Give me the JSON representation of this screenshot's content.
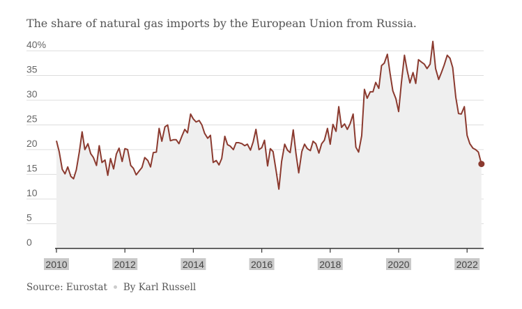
{
  "title": "The share of natural gas imports by the European Union from Russia.",
  "source": {
    "label": "Source: Eurostat",
    "byline": "By Karl Russell"
  },
  "colors": {
    "line": "#8b3a2f",
    "area": "#efefef",
    "grid": "#dddddd",
    "axis": "#333333",
    "tick_label_bg": "#c9c9c9"
  },
  "chart_data": {
    "type": "area",
    "title": "The share of natural gas imports by the European Union from Russia.",
    "xlabel": "",
    "ylabel": "",
    "ylim": [
      0,
      40
    ],
    "xlim": [
      2010.0,
      2022.42
    ],
    "yticks": [
      0,
      5,
      10,
      15,
      20,
      25,
      30,
      35,
      40
    ],
    "ytick_labels": [
      "0",
      "5",
      "10",
      "15",
      "20",
      "25",
      "30",
      "35",
      "40%"
    ],
    "xticks": [
      2010,
      2012,
      2014,
      2016,
      2018,
      2020,
      2022
    ],
    "xtick_labels": [
      "2010",
      "2012",
      "2014",
      "2016",
      "2018",
      "2020",
      "2022"
    ],
    "grid": true,
    "endpoint_marker": true,
    "series": [
      {
        "x": [
          2010.0,
          2010.08,
          2010.17,
          2010.25,
          2010.33,
          2010.42,
          2010.5,
          2010.58,
          2010.67,
          2010.75,
          2010.83,
          2010.92,
          2011.0,
          2011.08,
          2011.17,
          2011.25,
          2011.33,
          2011.42,
          2011.5,
          2011.58,
          2011.67,
          2011.75,
          2011.83,
          2011.92,
          2012.0,
          2012.08,
          2012.17,
          2012.25,
          2012.33,
          2012.42,
          2012.5,
          2012.58,
          2012.67,
          2012.75,
          2012.83,
          2012.92,
          2013.0,
          2013.08,
          2013.17,
          2013.25,
          2013.33,
          2013.42,
          2013.5,
          2013.58,
          2013.67,
          2013.75,
          2013.83,
          2013.92,
          2014.0,
          2014.08,
          2014.17,
          2014.25,
          2014.33,
          2014.42,
          2014.5,
          2014.58,
          2014.67,
          2014.75,
          2014.83,
          2014.92,
          2015.0,
          2015.08,
          2015.17,
          2015.25,
          2015.33,
          2015.42,
          2015.5,
          2015.58,
          2015.67,
          2015.75,
          2015.83,
          2015.92,
          2016.0,
          2016.08,
          2016.17,
          2016.25,
          2016.33,
          2016.42,
          2016.5,
          2016.58,
          2016.67,
          2016.75,
          2016.83,
          2016.92,
          2017.0,
          2017.08,
          2017.17,
          2017.25,
          2017.33,
          2017.42,
          2017.5,
          2017.58,
          2017.67,
          2017.75,
          2017.83,
          2017.92,
          2018.0,
          2018.08,
          2018.17,
          2018.25,
          2018.33,
          2018.42,
          2018.5,
          2018.58,
          2018.67,
          2018.75,
          2018.83,
          2018.92,
          2019.0,
          2019.08,
          2019.17,
          2019.25,
          2019.33,
          2019.42,
          2019.5,
          2019.58,
          2019.67,
          2019.75,
          2019.83,
          2019.92,
          2020.0,
          2020.08,
          2020.17,
          2020.25,
          2020.33,
          2020.42,
          2020.5,
          2020.58,
          2020.67,
          2020.75,
          2020.83,
          2020.92,
          2021.0,
          2021.08,
          2021.17,
          2021.25,
          2021.33,
          2021.42,
          2021.5,
          2021.58,
          2021.67,
          2021.75,
          2021.83,
          2021.92,
          2022.0,
          2022.08,
          2022.17,
          2022.25,
          2022.33,
          2022.42
        ],
        "values": [
          21.8,
          19.6,
          16.0,
          15.1,
          16.5,
          14.6,
          14.1,
          15.9,
          19.6,
          23.6,
          20.0,
          21.2,
          19.2,
          18.4,
          16.8,
          20.8,
          17.4,
          17.9,
          14.8,
          18.2,
          16.1,
          19.1,
          20.3,
          17.6,
          20.2,
          20.0,
          16.8,
          16.2,
          14.9,
          15.7,
          16.4,
          18.4,
          17.8,
          16.5,
          19.4,
          19.5,
          24.3,
          21.7,
          24.6,
          25.0,
          21.8,
          22.0,
          22.0,
          21.2,
          22.8,
          24.1,
          23.4,
          27.2,
          26.2,
          25.6,
          25.9,
          25.0,
          23.3,
          22.3,
          22.9,
          17.4,
          17.8,
          16.9,
          18.2,
          22.7,
          21.0,
          20.7,
          20.0,
          21.4,
          21.4,
          21.2,
          20.8,
          21.1,
          19.9,
          21.6,
          24.1,
          20.0,
          20.4,
          21.9,
          16.7,
          20.2,
          19.6,
          15.7,
          12.0,
          17.6,
          21.1,
          19.9,
          19.4,
          24.0,
          19.2,
          15.3,
          19.6,
          21.1,
          20.2,
          19.8,
          21.7,
          21.2,
          19.3,
          21.2,
          21.9,
          24.3,
          21.1,
          25.1,
          23.7,
          28.7,
          24.5,
          25.2,
          24.1,
          25.2,
          27.2,
          20.5,
          19.5,
          22.8,
          32.2,
          30.4,
          31.7,
          31.7,
          33.6,
          32.4,
          37.0,
          37.5,
          39.3,
          35.4,
          31.9,
          30.3,
          27.7,
          33.5,
          39.1,
          36.0,
          33.5,
          35.6,
          33.4,
          38.2,
          37.7,
          37.3,
          36.4,
          37.3,
          41.9,
          36.4,
          34.2,
          35.6,
          37.1,
          39.1,
          38.5,
          36.6,
          30.6,
          27.3,
          27.2,
          28.7,
          22.9,
          21.2,
          20.3,
          20.0,
          19.5,
          17.1
        ]
      }
    ]
  }
}
